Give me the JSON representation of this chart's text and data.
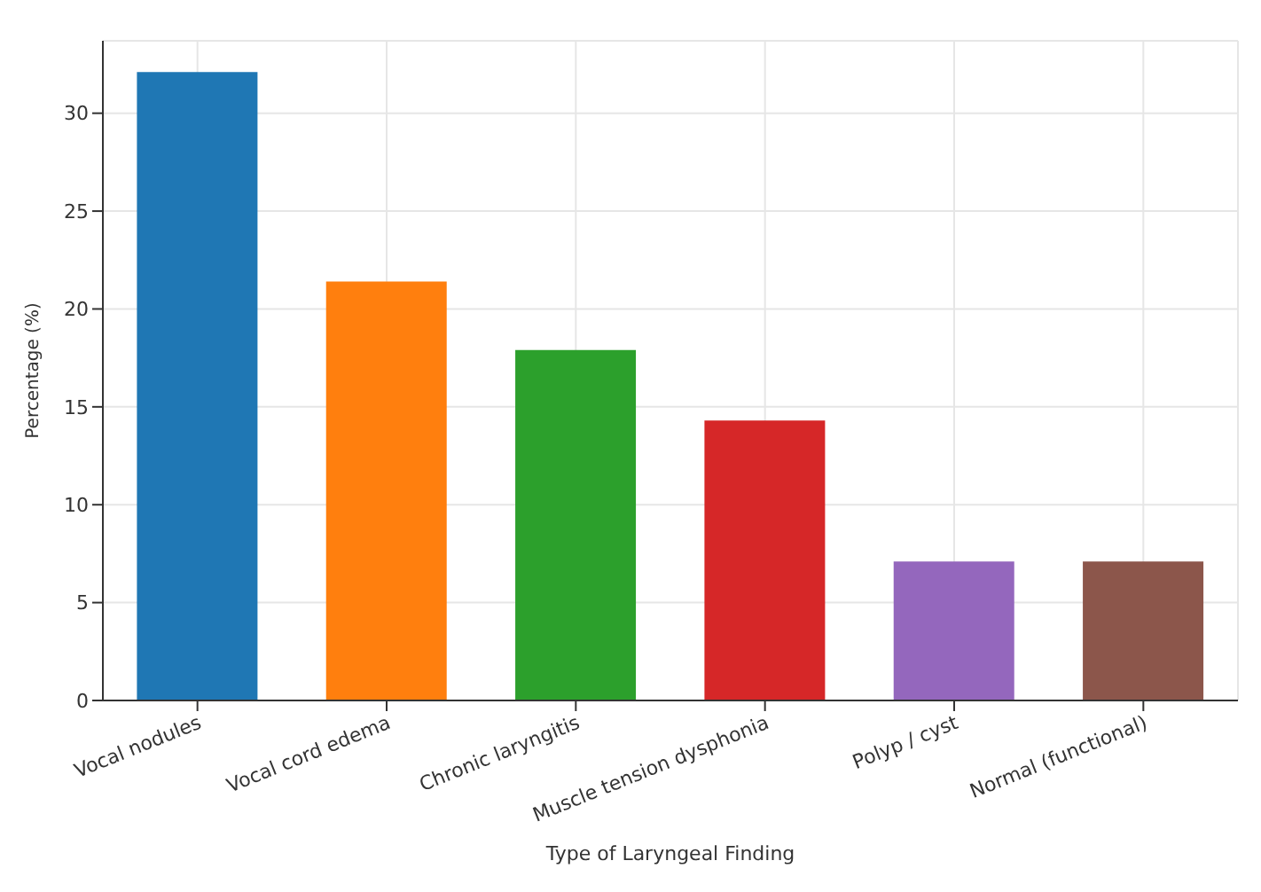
{
  "chart_data": {
    "type": "bar",
    "xlabel": "Type of Laryngeal Finding",
    "ylabel": "Percentage (%)",
    "categories": [
      "Vocal nodules",
      "Vocal cord edema",
      "Chronic laryngitis",
      "Muscle tension dysphonia",
      "Polyp / cyst",
      "Normal (functional)"
    ],
    "values": [
      32.1,
      21.4,
      17.9,
      14.3,
      7.1,
      7.1
    ],
    "colors": [
      "#1f77b4",
      "#ff7f0e",
      "#2ca02c",
      "#d62728",
      "#9467bd",
      "#8c564b"
    ],
    "ylim": [
      0,
      33.7
    ],
    "yticks": [
      0,
      5,
      10,
      15,
      20,
      25,
      30
    ],
    "grid": true
  }
}
